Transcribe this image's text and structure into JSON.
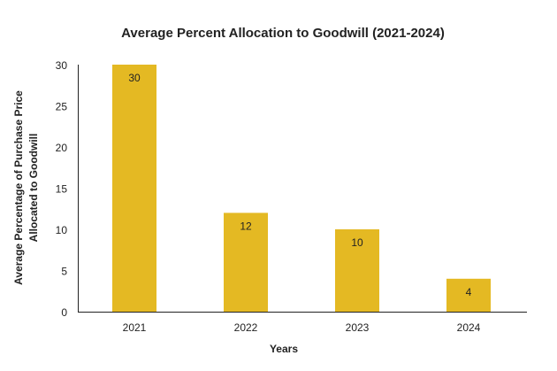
{
  "chart_data": {
    "type": "bar",
    "title": "Average Percent Allocation to Goodwill (2021-2024)",
    "xlabel": "Years",
    "ylabel": [
      "Average Percentage of Purchase Price",
      "Allocated to Goodwill"
    ],
    "categories": [
      "2021",
      "2022",
      "2023",
      "2024"
    ],
    "values": [
      30,
      12,
      10,
      4
    ],
    "data_labels": [
      "30",
      "12",
      "10",
      "4"
    ],
    "ylim": [
      0,
      30
    ],
    "yticks": [
      "0",
      "5",
      "10",
      "15",
      "20",
      "25",
      "30"
    ],
    "grid": false,
    "bar_color": "#E4B923"
  }
}
